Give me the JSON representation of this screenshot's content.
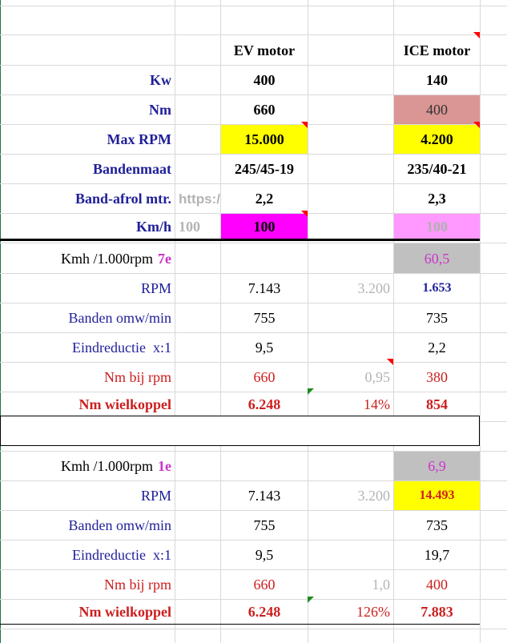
{
  "colors": {
    "label_blue": "#1f1f99",
    "label_red": "#cc1f1f",
    "gray_text": "#b4b4b4",
    "magenta_text": "#cc33cc",
    "navy_text": "#1f1f99",
    "yellow_fill": "#ffff00",
    "magenta_fill": "#ff00ff",
    "pink_fill": "#ff99ff",
    "rose_fill": "#da9694",
    "gray_fill": "#c0c0c0"
  },
  "header": {
    "ev": "EV motor",
    "ice": "ICE motor"
  },
  "spec_rows": [
    {
      "label": "Kw",
      "ev": "400",
      "ice": "140"
    },
    {
      "label": "Nm",
      "ev": "660",
      "ice": "400"
    },
    {
      "label": "Max RPM",
      "ev": "15.000",
      "ice": "4.200"
    },
    {
      "label": "Bandenmaat",
      "ev": "245/45-19",
      "ice": "235/40-21"
    },
    {
      "label": "Band-afrol mtr.",
      "extra": "https:/",
      "ev": "2,2",
      "ice": "2,3"
    },
    {
      "label": "Km/h",
      "extra": "100",
      "ev": "100",
      "ice": "100"
    }
  ],
  "gear7": {
    "title": "Kmh /1.000rpm",
    "gear": "7e",
    "ice_kmh": "60,5",
    "rows": [
      {
        "label": "RPM",
        "ev": "7.143",
        "mid": "3.200",
        "ice": "1.653"
      },
      {
        "label": "Banden omw/min",
        "ev": "755",
        "mid": "",
        "ice": "735"
      },
      {
        "label": "Eindreductie  x:1",
        "ev": "9,5",
        "mid": "",
        "ice": "2,2"
      },
      {
        "label": "Nm bij rpm",
        "ev": "660",
        "mid": "0,95",
        "ice": "380"
      },
      {
        "label": "Nm wielkoppel",
        "ev": "6.248",
        "mid": "14%",
        "ice": "854"
      }
    ]
  },
  "gear1": {
    "title": "Kmh /1.000rpm",
    "gear": "1e",
    "ice_kmh": "6,9",
    "rows": [
      {
        "label": "RPM",
        "ev": "7.143",
        "mid": "3.200",
        "ice": "14.493"
      },
      {
        "label": "Banden omw/min",
        "ev": "755",
        "mid": "",
        "ice": "735"
      },
      {
        "label": "Eindreductie  x:1",
        "ev": "9,5",
        "mid": "",
        "ice": "19,7"
      },
      {
        "label": "Nm bij rpm",
        "ev": "660",
        "mid": "1,0",
        "ice": "400"
      },
      {
        "label": "Nm wielkoppel",
        "ev": "6.248",
        "mid": "126%",
        "ice": "7.883"
      }
    ]
  }
}
